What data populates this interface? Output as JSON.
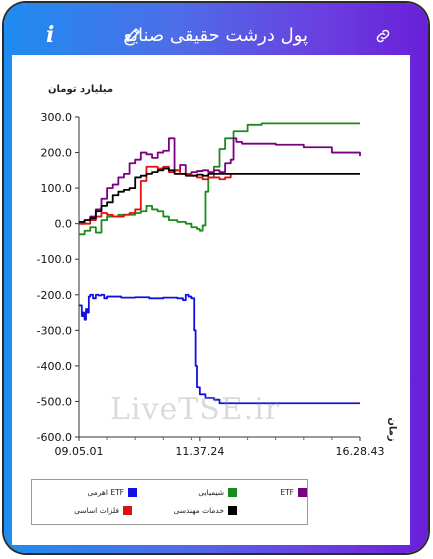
{
  "header": {
    "title": "پول درشت حقیقی صنایع",
    "info_icon": "info-icon",
    "edit_icon": "pencil-icon",
    "link_icon": "link-icon",
    "colors": {
      "gradient_start": "#1e8cf0",
      "gradient_end": "#6a1fd8"
    }
  },
  "watermark": "LiveTSE.ir",
  "chart_data": {
    "type": "line",
    "ylabel": "میلیارد تومان",
    "xlabel": "زمان",
    "ylim": [
      -600,
      300
    ],
    "yticks": [
      "300.0",
      "200.0",
      "100.0",
      "0.0",
      "-100.0",
      "-200.0",
      "-300.0",
      "-400.0",
      "-500.0",
      "-600.0"
    ],
    "xticks": [
      "09.05.01",
      "11.37.24",
      "16.28.43"
    ],
    "xlim": [
      0,
      100
    ],
    "grid": false,
    "legend_position": "bottom-left",
    "series": [
      {
        "name": "ETF اهرمی",
        "color": "#1010e0",
        "x": [
          0,
          1,
          1.5,
          2,
          2.5,
          3,
          3.5,
          4,
          5,
          6,
          7,
          8,
          9,
          10,
          15,
          20,
          25,
          30,
          35,
          37,
          38,
          39,
          40,
          41,
          41.5,
          42,
          43,
          45,
          48,
          50,
          60,
          70,
          80,
          90,
          100
        ],
        "y": [
          -230,
          -260,
          -250,
          -270,
          -240,
          -250,
          -205,
          -200,
          -210,
          -200,
          -202,
          -200,
          -210,
          -205,
          -208,
          -207,
          -210,
          -208,
          -210,
          -215,
          -200,
          -205,
          -210,
          -300,
          -400,
          -460,
          -480,
          -490,
          -495,
          -505,
          -505,
          -505,
          -505,
          -505,
          -505
        ]
      },
      {
        "name": "شیمیایی",
        "color": "#1a8c1a",
        "x": [
          0,
          2,
          4,
          6,
          8,
          10,
          14,
          18,
          20,
          22,
          24,
          26,
          28,
          30,
          32,
          35,
          38,
          40,
          42,
          43,
          44,
          45,
          46,
          48,
          50,
          52,
          55,
          60,
          65,
          70,
          80,
          90,
          100
        ],
        "y": [
          -30,
          -20,
          -10,
          -25,
          10,
          20,
          25,
          25,
          30,
          35,
          50,
          40,
          35,
          20,
          10,
          5,
          0,
          -10,
          -15,
          -20,
          -5,
          90,
          130,
          160,
          210,
          240,
          260,
          278,
          282,
          282,
          282,
          282,
          282
        ]
      },
      {
        "name": "ETF",
        "color": "#7a0080",
        "x": [
          0,
          2,
          4,
          6,
          8,
          10,
          12,
          14,
          16,
          18,
          20,
          22,
          24,
          26,
          28,
          30,
          32,
          34,
          36,
          38,
          40,
          42,
          44,
          46,
          48,
          50,
          52,
          54,
          55,
          56,
          58,
          60,
          70,
          80,
          90,
          100
        ],
        "y": [
          0,
          10,
          20,
          40,
          70,
          100,
          110,
          130,
          140,
          170,
          180,
          200,
          195,
          185,
          200,
          205,
          240,
          150,
          165,
          140,
          145,
          148,
          150,
          145,
          150,
          145,
          170,
          180,
          240,
          230,
          225,
          225,
          222,
          215,
          200,
          190
        ]
      },
      {
        "name": "فلزات اساسی",
        "color": "#e01010",
        "x": [
          0,
          4,
          6,
          8,
          10,
          12,
          14,
          16,
          18,
          20,
          22,
          24,
          26,
          28,
          30,
          32,
          34,
          36,
          38,
          40,
          42,
          44,
          46,
          48,
          50,
          52,
          54
        ],
        "y": [
          0,
          10,
          20,
          30,
          25,
          20,
          20,
          25,
          30,
          40,
          120,
          160,
          160,
          155,
          160,
          145,
          150,
          140,
          140,
          135,
          130,
          125,
          130,
          130,
          125,
          130,
          140
        ]
      },
      {
        "name": "خدمات مهندسی",
        "color": "#000000",
        "x": [
          0,
          2,
          4,
          6,
          8,
          10,
          12,
          14,
          16,
          18,
          20,
          22,
          24,
          26,
          28,
          30,
          32,
          34,
          36,
          38,
          40,
          42,
          44,
          46,
          48,
          50,
          55,
          60,
          70,
          80,
          90,
          100
        ],
        "y": [
          5,
          10,
          15,
          35,
          50,
          60,
          80,
          90,
          95,
          100,
          130,
          135,
          140,
          145,
          150,
          155,
          150,
          140,
          140,
          135,
          135,
          138,
          135,
          140,
          140,
          140,
          140,
          140,
          140,
          140,
          140,
          140
        ]
      }
    ]
  }
}
